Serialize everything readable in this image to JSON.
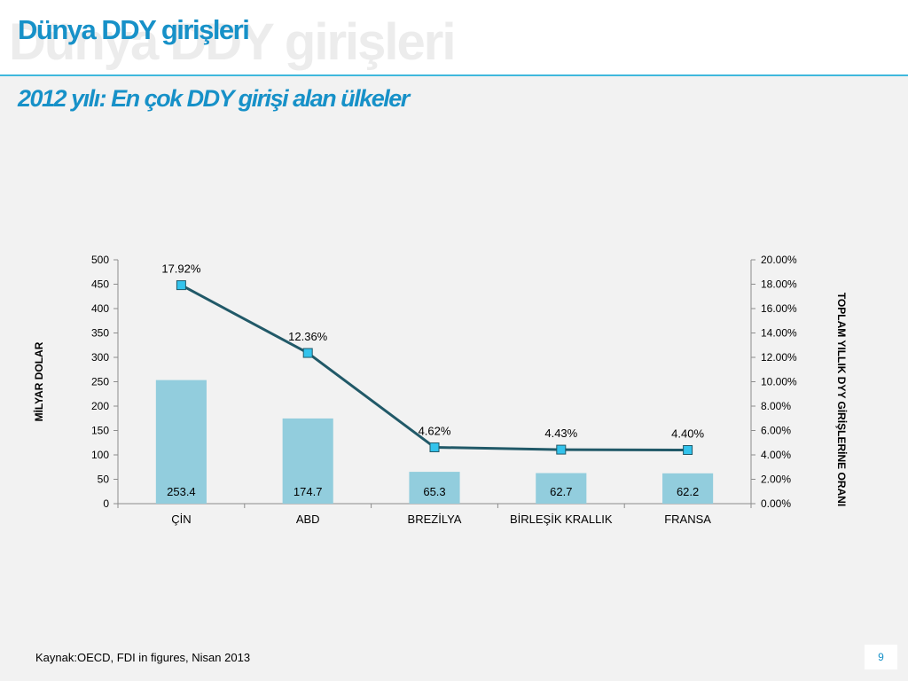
{
  "slide": {
    "title": "Dünya DDY girişleri",
    "subtitle": "2012 yılı: En çok DDY girişi alan ülkeler",
    "source": "Kaynak:OECD, FDI in figures, Nisan 2013",
    "page_number": "9"
  },
  "colors": {
    "accent": "#1791c8",
    "bar": "#92cddd",
    "line": "#215968",
    "marker": "#33c3ec"
  },
  "chart_data": {
    "type": "bar",
    "categories": [
      "ÇİN",
      "ABD",
      "BREZİLYA",
      "BİRLEŞİK KRALLIK",
      "FRANSA"
    ],
    "series": [
      {
        "values": [
          253.4,
          174.7,
          65.3,
          62.7,
          62.2
        ],
        "labels": [
          "253.4",
          "174.7",
          "65.3",
          "62.7",
          "62.2"
        ],
        "axis": "left",
        "type": "bar"
      },
      {
        "values": [
          17.92,
          12.36,
          4.62,
          4.43,
          4.4
        ],
        "labels": [
          "17.92%",
          "12.36%",
          "4.62%",
          "4.43%",
          "4.40%"
        ],
        "axis": "right",
        "type": "line"
      }
    ],
    "ylabel": "MİLYAR DOLAR",
    "y2label": "TOPLAM YILLIK  DYY GİRİŞLERİNE ORANI",
    "ylim": [
      0,
      500
    ],
    "y2lim": [
      0,
      20
    ],
    "yticks": [
      "0",
      "50",
      "100",
      "150",
      "200",
      "250",
      "300",
      "350",
      "400",
      "450",
      "500"
    ],
    "y2ticks": [
      "0.00%",
      "2.00%",
      "4.00%",
      "6.00%",
      "8.00%",
      "10.00%",
      "12.00%",
      "14.00%",
      "16.00%",
      "18.00%",
      "20.00%"
    ],
    "grid": false,
    "legend": "none"
  }
}
